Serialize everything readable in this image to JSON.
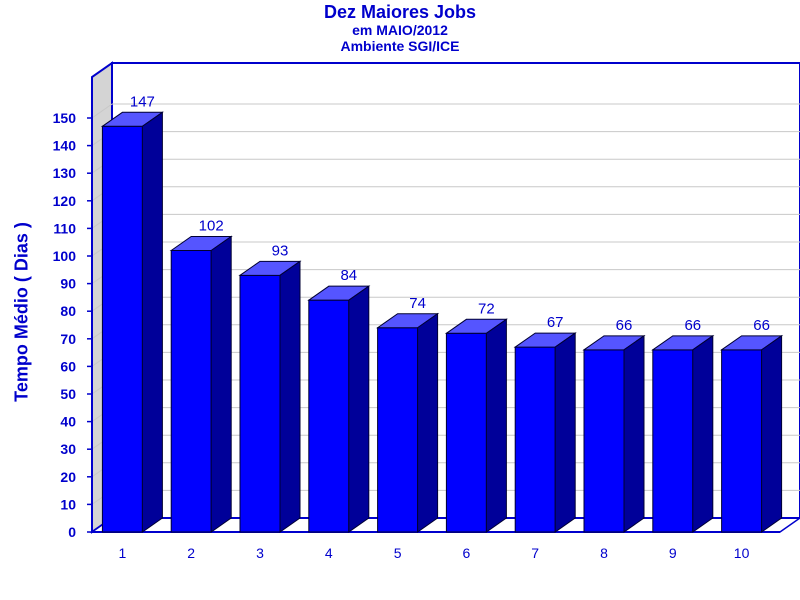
{
  "chart_data": {
    "type": "bar",
    "title": "Dez Maiores Jobs",
    "subtitle_lines": [
      "em MAIO/2012",
      "Ambiente SGI/ICE"
    ],
    "xlabel": "",
    "ylabel": "Tempo Médio ( Dias )",
    "categories": [
      "1",
      "2",
      "3",
      "4",
      "5",
      "6",
      "7",
      "8",
      "9",
      "10"
    ],
    "values": [
      147,
      102,
      93,
      84,
      74,
      72,
      67,
      66,
      66,
      66
    ],
    "ylim": [
      0,
      150
    ],
    "yticks": [
      0,
      10,
      20,
      30,
      40,
      50,
      60,
      70,
      80,
      90,
      100,
      110,
      120,
      130,
      140,
      150
    ],
    "grid": true,
    "legend": "none",
    "colors": {
      "bar_front": "#0000ff",
      "bar_top": "#5555ff",
      "bar_side": "#000099",
      "text": "#0000cc",
      "frame": "#0000cc",
      "side_wall": "#d4d4d4",
      "grid": "#c8c8c8"
    }
  }
}
